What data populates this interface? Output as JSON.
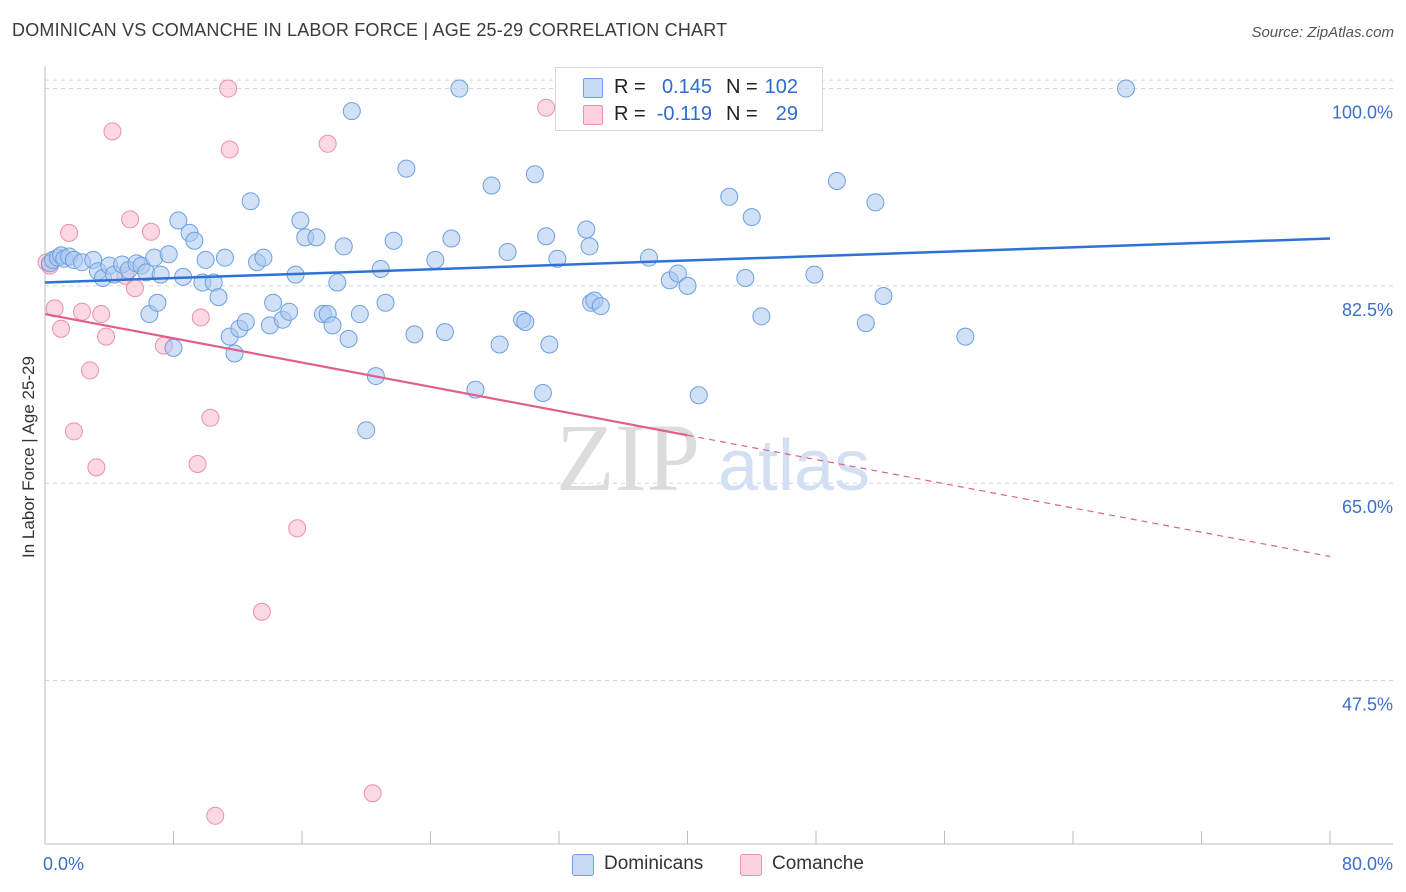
{
  "title": "DOMINICAN VS COMANCHE IN LABOR FORCE | AGE 25-29 CORRELATION CHART",
  "source": "Source: ZipAtlas.com",
  "watermark": {
    "zip": "ZIP",
    "atlas": "atlas"
  },
  "legend": {
    "rows": [
      {
        "r_label": "R =",
        "r_value": "0.145",
        "n_label": "N =",
        "n_value": "102",
        "color": "#a9c8f0"
      },
      {
        "r_label": "R =",
        "r_value": "-0.119",
        "n_label": "N =",
        "n_value": "29",
        "color": "#f7b8cb"
      }
    ]
  },
  "bottom_legend": {
    "items": [
      {
        "label": "Dominicans",
        "color": "#a9c8f0"
      },
      {
        "label": "Comanche",
        "color": "#f7b8cb"
      }
    ]
  },
  "colors": {
    "blue": "#2f72d4",
    "blue_fill": "#a9c8f0",
    "pink": "#e0608c",
    "pink_fill": "#f7b8cb",
    "grid": "#d7d7d7",
    "axis_text": "#3a70c8"
  },
  "chart_data": {
    "type": "scatter",
    "title": "DOMINICAN VS COMANCHE IN LABOR FORCE | AGE 25-29 CORRELATION CHART",
    "xlabel": "",
    "ylabel": "In Labor Force | Age 25-29",
    "xlim": [
      0,
      80
    ],
    "ylim": [
      33,
      102
    ],
    "y_ticks": [
      47.5,
      65.0,
      82.5,
      100.0
    ],
    "y_tick_labels": [
      "47.5%",
      "65.0%",
      "82.5%",
      "100.0%"
    ],
    "x_tick_labels": [
      "0.0%",
      "80.0%"
    ],
    "grid": true,
    "legend_placement": "top-center",
    "series": [
      {
        "name": "Dominicans",
        "color": "#a9c8f0",
        "trend": {
          "x": [
            0,
            80
          ],
          "y": [
            82.8,
            86.7
          ]
        },
        "points": [
          [
            0.3,
            84.5
          ],
          [
            0.5,
            84.8
          ],
          [
            0.8,
            85.0
          ],
          [
            1.0,
            85.2
          ],
          [
            1.2,
            84.9
          ],
          [
            1.5,
            85.1
          ],
          [
            1.8,
            84.8
          ],
          [
            2.3,
            84.6
          ],
          [
            3.0,
            84.8
          ],
          [
            3.3,
            83.8
          ],
          [
            3.6,
            83.2
          ],
          [
            4.0,
            84.3
          ],
          [
            4.3,
            83.5
          ],
          [
            4.8,
            84.4
          ],
          [
            5.2,
            83.9
          ],
          [
            5.7,
            84.5
          ],
          [
            6.0,
            84.3
          ],
          [
            6.3,
            83.7
          ],
          [
            6.5,
            80.0
          ],
          [
            6.8,
            85.0
          ],
          [
            7.0,
            81.0
          ],
          [
            7.2,
            83.5
          ],
          [
            7.7,
            85.3
          ],
          [
            8.0,
            77.0
          ],
          [
            8.3,
            88.3
          ],
          [
            8.6,
            83.3
          ],
          [
            9.0,
            87.2
          ],
          [
            9.3,
            86.5
          ],
          [
            9.8,
            82.8
          ],
          [
            10.0,
            84.8
          ],
          [
            10.5,
            82.8
          ],
          [
            10.8,
            81.5
          ],
          [
            11.2,
            85.0
          ],
          [
            11.5,
            78.0
          ],
          [
            11.8,
            76.5
          ],
          [
            12.1,
            78.7
          ],
          [
            12.5,
            79.3
          ],
          [
            12.8,
            90.0
          ],
          [
            13.2,
            84.6
          ],
          [
            13.6,
            85.0
          ],
          [
            14.0,
            79.0
          ],
          [
            14.2,
            81.0
          ],
          [
            14.8,
            79.5
          ],
          [
            15.2,
            80.2
          ],
          [
            15.6,
            83.5
          ],
          [
            15.9,
            88.3
          ],
          [
            16.2,
            86.8
          ],
          [
            16.9,
            86.8
          ],
          [
            17.3,
            80.0
          ],
          [
            17.6,
            80.0
          ],
          [
            17.9,
            79.0
          ],
          [
            18.2,
            82.8
          ],
          [
            18.6,
            86.0
          ],
          [
            18.9,
            77.8
          ],
          [
            19.1,
            98.0
          ],
          [
            19.6,
            80.0
          ],
          [
            20.0,
            69.7
          ],
          [
            20.6,
            74.5
          ],
          [
            20.9,
            84.0
          ],
          [
            21.2,
            81.0
          ],
          [
            21.7,
            86.5
          ],
          [
            22.5,
            92.9
          ],
          [
            23.0,
            78.2
          ],
          [
            24.3,
            84.8
          ],
          [
            24.9,
            78.4
          ],
          [
            25.3,
            86.7
          ],
          [
            25.8,
            100.0
          ],
          [
            26.8,
            73.3
          ],
          [
            27.8,
            91.4
          ],
          [
            28.3,
            77.3
          ],
          [
            28.8,
            85.5
          ],
          [
            29.7,
            79.5
          ],
          [
            29.9,
            79.3
          ],
          [
            30.5,
            92.4
          ],
          [
            31.0,
            73.0
          ],
          [
            31.2,
            86.9
          ],
          [
            31.4,
            77.3
          ],
          [
            31.9,
            84.9
          ],
          [
            32.6,
            100.0
          ],
          [
            33.7,
            87.5
          ],
          [
            33.9,
            86.0
          ],
          [
            34.0,
            81.0
          ],
          [
            34.2,
            81.2
          ],
          [
            34.6,
            80.7
          ],
          [
            37.6,
            85.0
          ],
          [
            38.9,
            83.0
          ],
          [
            39.4,
            83.6
          ],
          [
            40.0,
            82.5
          ],
          [
            40.7,
            72.8
          ],
          [
            42.6,
            90.4
          ],
          [
            43.6,
            83.2
          ],
          [
            44.0,
            88.6
          ],
          [
            44.6,
            79.8
          ],
          [
            45.0,
            100.0
          ],
          [
            47.9,
            83.5
          ],
          [
            49.3,
            91.8
          ],
          [
            51.1,
            79.2
          ],
          [
            51.7,
            89.9
          ],
          [
            52.2,
            81.6
          ],
          [
            57.3,
            78.0
          ],
          [
            67.3,
            100.0
          ]
        ]
      },
      {
        "name": "Comanche",
        "color": "#f7b8cb",
        "trend": {
          "x": [
            0,
            80
          ],
          "y": [
            80.0,
            58.5
          ]
        },
        "trend_solid_to_x": 40,
        "points": [
          [
            0.3,
            84.3
          ],
          [
            0.6,
            80.5
          ],
          [
            1.0,
            78.7
          ],
          [
            1.5,
            87.2
          ],
          [
            1.8,
            69.6
          ],
          [
            2.3,
            80.2
          ],
          [
            2.8,
            75.0
          ],
          [
            3.2,
            66.4
          ],
          [
            3.5,
            80.0
          ],
          [
            3.8,
            78.0
          ],
          [
            4.2,
            96.2
          ],
          [
            5.0,
            83.4
          ],
          [
            5.3,
            88.4
          ],
          [
            5.6,
            82.3
          ],
          [
            6.6,
            87.3
          ],
          [
            7.4,
            77.2
          ],
          [
            9.7,
            79.7
          ],
          [
            10.3,
            70.8
          ],
          [
            9.5,
            66.7
          ],
          [
            10.6,
            35.5
          ],
          [
            11.4,
            100.0
          ],
          [
            11.5,
            94.6
          ],
          [
            13.5,
            53.6
          ],
          [
            15.7,
            61.0
          ],
          [
            17.6,
            95.1
          ],
          [
            20.4,
            37.5
          ],
          [
            31.2,
            98.3
          ],
          [
            47.0,
            100.0
          ],
          [
            0.1,
            84.6
          ]
        ]
      }
    ]
  }
}
